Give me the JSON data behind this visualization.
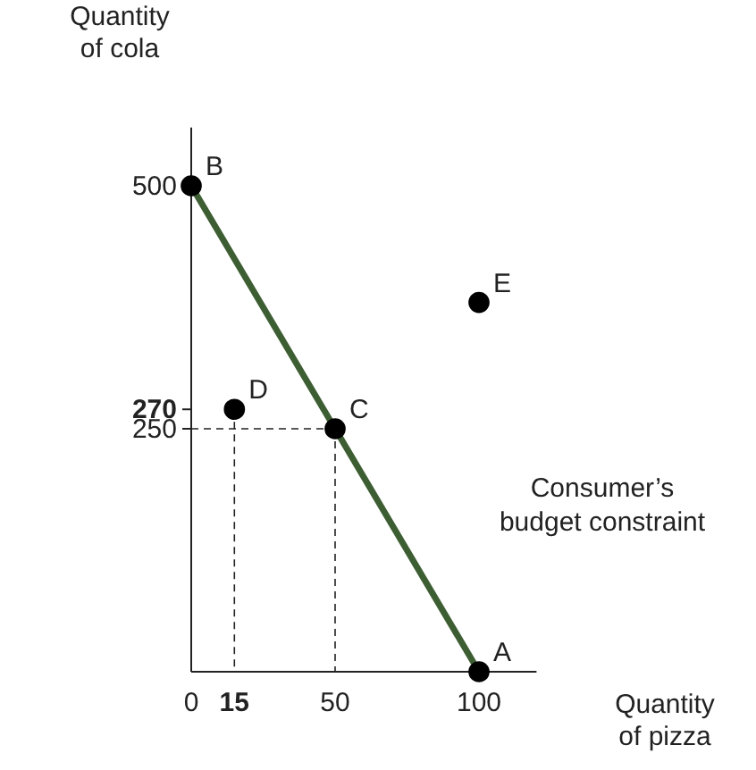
{
  "chart_data": {
    "type": "line",
    "xlabel": "Quantity of pizza",
    "ylabel": "Quantity of cola",
    "xlim": [
      0,
      120
    ],
    "ylim": [
      0,
      560
    ],
    "xticks": [
      0,
      15,
      50,
      100
    ],
    "yticks": [
      250,
      270,
      500
    ],
    "marker": "circle",
    "series": [
      {
        "color": "#3d5e32",
        "x": [
          0,
          50,
          100
        ],
        "values": [
          500,
          250,
          0
        ]
      },
      {
        "type": "scatter",
        "color": "#000000",
        "x": [
          15,
          100
        ],
        "values": [
          270,
          380
        ]
      }
    ],
    "annotations": [
      {
        "text": "A",
        "x": 100,
        "y": 0
      },
      {
        "text": "B",
        "x": 0,
        "y": 500
      },
      {
        "text": "C",
        "x": 50,
        "y": 250
      },
      {
        "text": "D",
        "x": 15,
        "y": 270
      },
      {
        "text": "E",
        "x": 100,
        "y": 380
      },
      "Consumer’s\nbudget constraint"
    ]
  }
}
